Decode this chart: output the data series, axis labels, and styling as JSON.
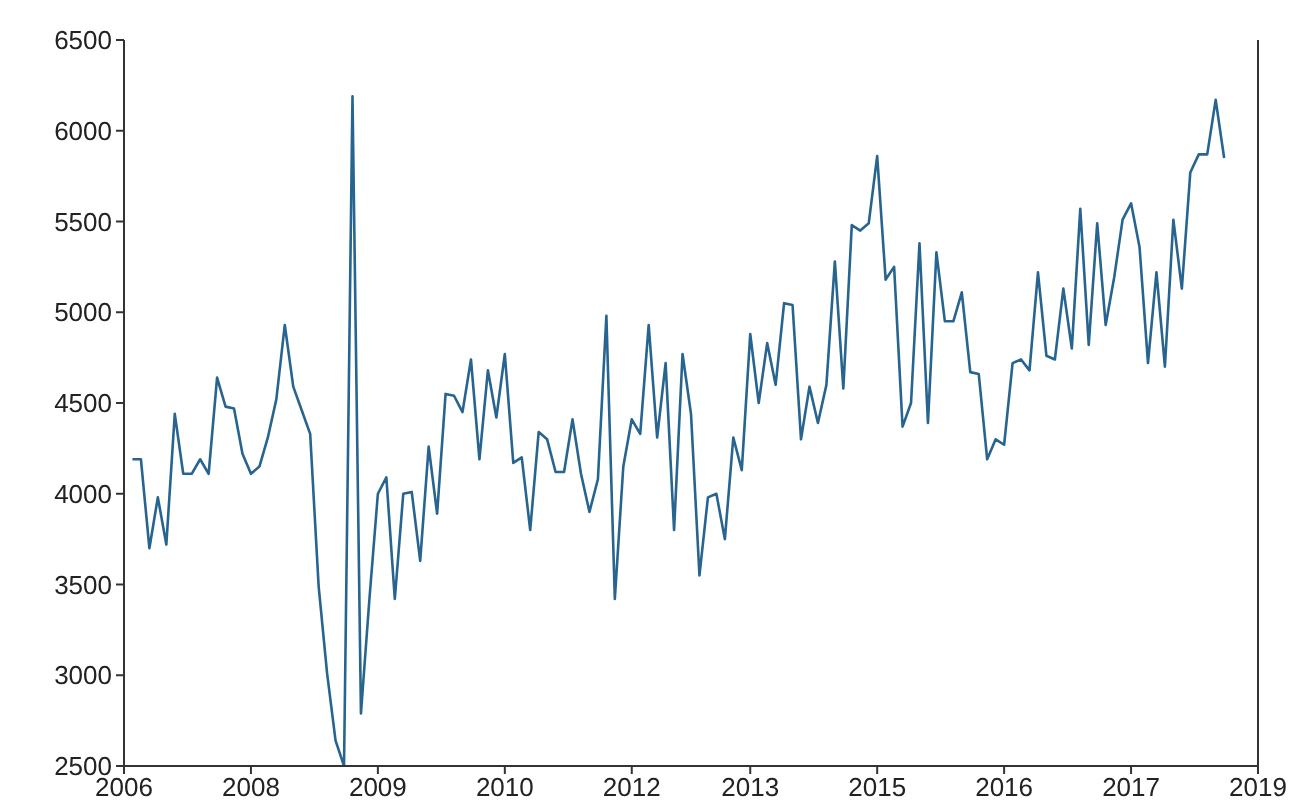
{
  "chart_data": {
    "type": "line",
    "color": "#27648f",
    "marker": "none",
    "line_style": "solid",
    "grid": false,
    "legend": false,
    "categories": [
      "2006",
      null,
      null,
      null,
      null,
      null,
      null,
      null,
      null,
      null,
      null,
      null,
      null,
      null,
      null,
      "2008",
      null,
      null,
      null,
      null,
      null,
      null,
      null,
      null,
      null,
      null,
      null,
      null,
      null,
      null,
      "2009",
      null,
      null,
      null,
      null,
      null,
      null,
      null,
      null,
      null,
      null,
      null,
      null,
      null,
      null,
      "2010",
      null,
      null,
      null,
      null,
      null,
      null,
      null,
      null,
      null,
      null,
      null,
      null,
      null,
      null,
      "2012",
      null,
      null,
      null,
      null,
      null,
      null,
      null,
      null,
      null,
      null,
      null,
      null,
      null,
      "2013",
      null,
      null,
      null,
      null,
      null,
      null,
      null,
      null,
      null,
      null,
      null,
      null,
      null,
      null,
      "2015",
      null,
      null,
      null,
      null,
      null,
      null,
      null,
      null,
      null,
      null,
      null,
      null,
      null,
      null,
      "2016",
      null,
      null,
      null,
      null,
      null,
      null,
      null,
      null,
      null,
      null,
      null,
      null,
      null,
      null,
      "2017",
      null,
      null,
      null,
      null,
      null,
      null,
      null,
      null,
      null,
      null,
      null,
      null,
      null,
      null,
      "2019"
    ],
    "values": [
      null,
      4190,
      4190,
      3700,
      3980,
      3720,
      4440,
      4110,
      4110,
      4190,
      4110,
      4640,
      4480,
      4470,
      4220,
      4110,
      4150,
      4310,
      4520,
      4930,
      4590,
      4460,
      4330,
      3490,
      3010,
      2640,
      2500,
      6190,
      2790,
      3420,
      4000,
      4090,
      3420,
      4000,
      4010,
      3630,
      4260,
      3890,
      4550,
      4540,
      4450,
      4740,
      4190,
      4680,
      4420,
      4770,
      4170,
      4200,
      3800,
      4340,
      4300,
      4120,
      4120,
      4410,
      4110,
      3900,
      4080,
      4980,
      3420,
      4150,
      4410,
      4330,
      4930,
      4310,
      4720,
      3800,
      4770,
      4440,
      3550,
      3980,
      4000,
      3750,
      4310,
      4130,
      4880,
      4500,
      4830,
      4600,
      5050,
      5040,
      4300,
      4590,
      4390,
      4600,
      5280,
      4580,
      5480,
      5450,
      5490,
      5860,
      5180,
      5250,
      4370,
      4500,
      5380,
      4390,
      5330,
      4950,
      4950,
      5110,
      4670,
      4660,
      4190,
      4300,
      4270,
      4720,
      4740,
      4680,
      5220,
      4760,
      4740,
      5130,
      4800,
      5570,
      4820,
      5490,
      4930,
      5190,
      5510,
      5600,
      5360,
      4720,
      5220,
      4700,
      5510,
      5130,
      5770,
      5870,
      5870,
      6170,
      5850,
      null,
      null,
      null,
      null
    ],
    "ylim": [
      2500,
      6500
    ],
    "yticks": [
      2500,
      3000,
      3500,
      4000,
      4500,
      5000,
      5500,
      6000,
      6500
    ]
  }
}
